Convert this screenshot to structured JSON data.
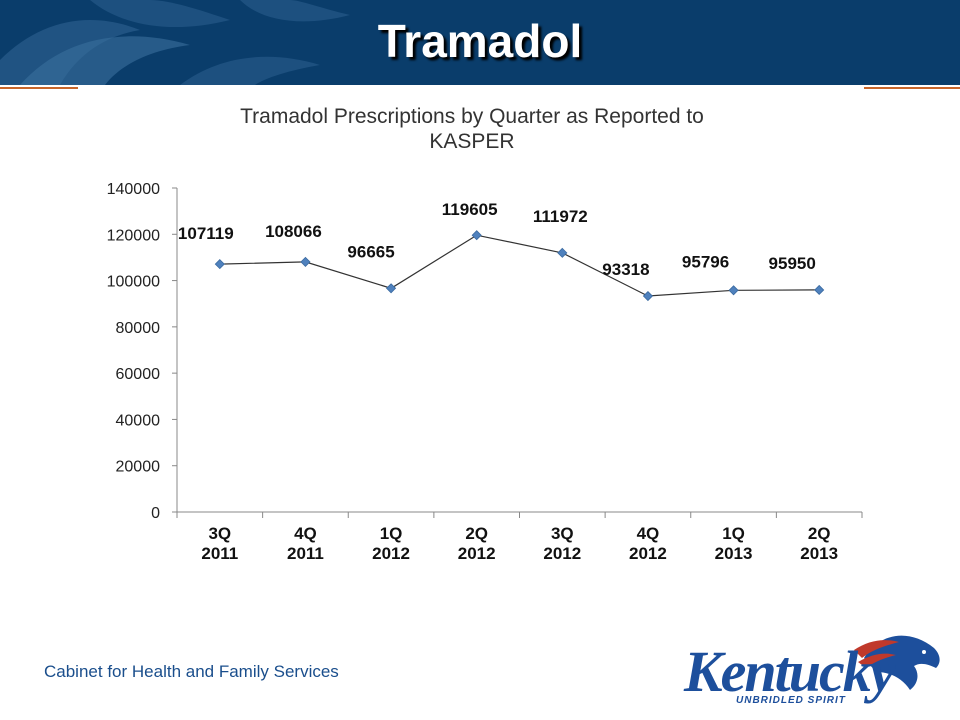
{
  "slide": {
    "title": "Tramadol",
    "footer": "Cabinet for Health and Family Services"
  },
  "logo": {
    "word": "Kentucky",
    "tagline": "UNBRIDLED SPIRIT",
    "colors": {
      "blue": "#1d4f9c",
      "red": "#c0392b"
    }
  },
  "colors": {
    "header": "#0a3d6b",
    "accent_rule": "#c8662a",
    "series": "#4f81bd"
  },
  "chart_data": {
    "type": "line",
    "title": "Tramadol Prescriptions by Quarter as Reported to KASPER",
    "title_lines": [
      "Tramadol Prescriptions by Quarter as Reported to",
      "KASPER"
    ],
    "categories": [
      [
        "3Q",
        "2011"
      ],
      [
        "4Q",
        "2011"
      ],
      [
        "1Q",
        "2012"
      ],
      [
        "2Q",
        "2012"
      ],
      [
        "3Q",
        "2012"
      ],
      [
        "4Q",
        "2012"
      ],
      [
        "1Q",
        "2013"
      ],
      [
        "2Q",
        "2013"
      ]
    ],
    "series": [
      {
        "values": [
          107119,
          108066,
          96665,
          119605,
          111972,
          93318,
          95796,
          95950
        ]
      }
    ],
    "data_labels": [
      "107119",
      "108066",
      "96665",
      "119605",
      "111972",
      "93318",
      "95796",
      "95950"
    ],
    "yticks": [
      "0",
      "20000",
      "40000",
      "60000",
      "80000",
      "100000",
      "120000",
      "140000"
    ],
    "ylim": [
      0,
      140000
    ],
    "grid": false,
    "legend": "none"
  }
}
